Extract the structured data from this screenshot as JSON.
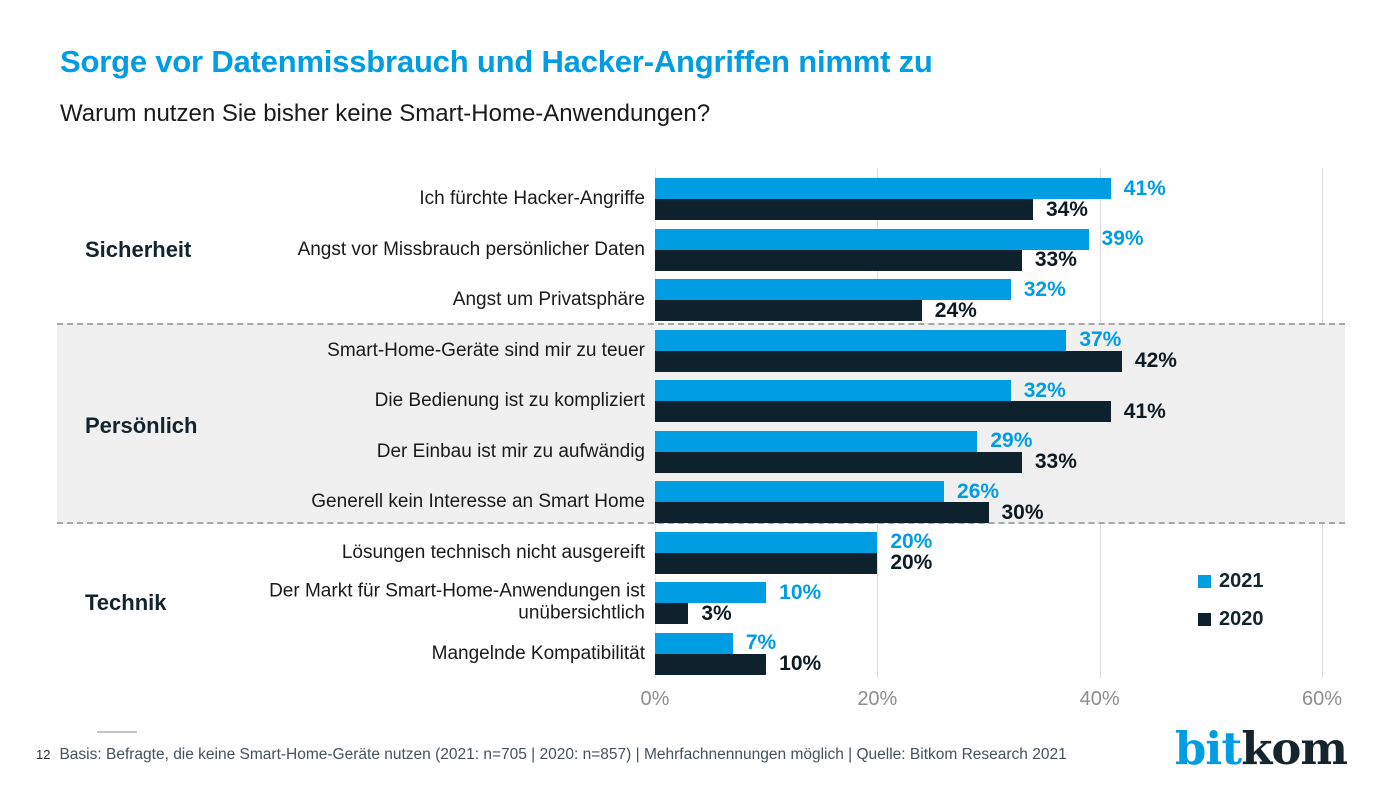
{
  "header": {
    "title": "Sorge vor Datenmissbrauch und Hacker-Angriffen nimmt zu",
    "subtitle": "Warum nutzen Sie bisher keine Smart-Home-Anwendungen?"
  },
  "chart_data": {
    "type": "bar",
    "orientation": "horizontal",
    "unit": "%",
    "xlim": [
      0,
      60
    ],
    "x_ticks": [
      "0%",
      "20%",
      "40%",
      "60%"
    ],
    "x_tick_values": [
      0,
      20,
      40,
      60
    ],
    "grid": "vertical",
    "legend_position": "bottom-right",
    "series_names": [
      "2021",
      "2020"
    ],
    "groups": [
      {
        "name": "Sicherheit",
        "highlighted": false,
        "items": [
          {
            "label": "Ich fürchte Hacker-Angriffe",
            "values": {
              "2021": 41,
              "2020": 34
            }
          },
          {
            "label": "Angst vor Missbrauch persönlicher Daten",
            "values": {
              "2021": 39,
              "2020": 33
            }
          },
          {
            "label": "Angst um Privatsphäre",
            "values": {
              "2021": 32,
              "2020": 24
            }
          }
        ]
      },
      {
        "name": "Persönlich",
        "highlighted": true,
        "items": [
          {
            "label": "Smart-Home-Geräte sind mir zu teuer",
            "values": {
              "2021": 37,
              "2020": 42
            }
          },
          {
            "label": "Die Bedienung ist zu kompliziert",
            "values": {
              "2021": 32,
              "2020": 41
            }
          },
          {
            "label": "Der Einbau ist mir zu aufwändig",
            "values": {
              "2021": 29,
              "2020": 33
            }
          },
          {
            "label": "Generell kein Interesse an Smart Home",
            "values": {
              "2021": 26,
              "2020": 30
            }
          }
        ]
      },
      {
        "name": "Technik",
        "highlighted": false,
        "items": [
          {
            "label": "Lösungen technisch nicht ausgereift",
            "values": {
              "2021": 20,
              "2020": 20
            }
          },
          {
            "label": "Der Markt für Smart-Home-Anwendungen ist unübersichtlich",
            "values": {
              "2021": 10,
              "2020": 3
            }
          },
          {
            "label": "Mangelnde Kompatibilität",
            "values": {
              "2021": 7,
              "2020": 10
            }
          }
        ]
      }
    ]
  },
  "legend": {
    "items": [
      {
        "label": "2021",
        "color": "#009DE2"
      },
      {
        "label": "2020",
        "color": "#0D222D"
      }
    ]
  },
  "footer": {
    "page_number": "12",
    "note": "Basis: Befragte, die keine Smart-Home-Geräte nutzen (2021: n=705 | 2020: n=857) | Mehrfachnennungen möglich | Quelle: Bitkom Research 2021"
  },
  "logo": {
    "prefix": "bit",
    "suffix": "kom"
  },
  "colors": {
    "accent_blue": "#009DE2",
    "dark_navy": "#0D222D",
    "band_gray": "#F0F0F0",
    "grid_gray": "#DCDCDC",
    "tick_gray": "#8E8E8E"
  }
}
